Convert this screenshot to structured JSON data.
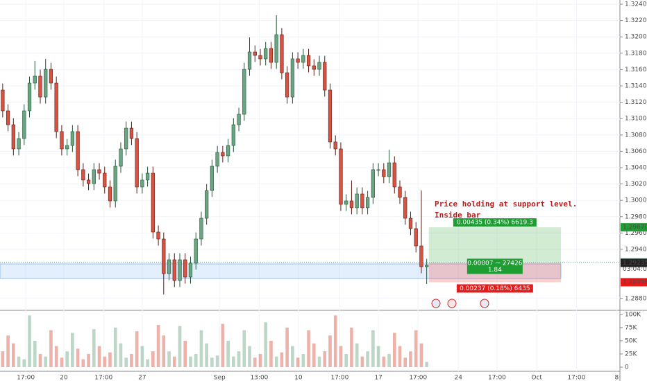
{
  "chart_data": {
    "type": "candlestick",
    "open": [
      1.31349,
      1.31095,
      1.30925,
      1.30629,
      1.30756,
      1.31095,
      1.31434,
      1.31519,
      1.31264,
      1.31603,
      1.31434,
      1.30841,
      1.30629,
      1.30671,
      1.30841,
      1.30375,
      1.30248,
      1.30205,
      1.30375,
      1.30332,
      1.30163,
      1.29993,
      1.30417,
      1.30629,
      1.30883,
      1.30756,
      1.30163,
      1.30248,
      1.30332,
      1.29612,
      1.29527,
      1.29103,
      1.29273,
      1.29019,
      1.29273,
      1.29061,
      1.29231,
      1.29527,
      1.29781,
      1.3012,
      1.30417,
      1.30586,
      1.30544,
      1.30671,
      1.30925,
      1.31053,
      1.31603,
      1.31815,
      1.31773,
      1.31731,
      1.31858,
      1.31688,
      1.32027,
      1.31561,
      1.31264,
      1.31731,
      1.31688,
      1.31773,
      1.31646,
      1.31603,
      1.31688,
      1.31349,
      1.30714,
      1.30629,
      1.29951,
      1.29993,
      1.29909,
      1.30078,
      1.29909,
      1.30036,
      1.30375,
      1.30375,
      1.3029,
      1.30459,
      1.30163,
      1.30036,
      1.29781,
      1.29654,
      1.29442,
      1.29188
    ],
    "high": [
      1.31429,
      1.31175,
      1.31005,
      1.30836,
      1.31175,
      1.31514,
      1.31706,
      1.31599,
      1.31731,
      1.31683,
      1.31514,
      1.30921,
      1.30751,
      1.30921,
      1.30921,
      1.30455,
      1.30328,
      1.30455,
      1.30455,
      1.30412,
      1.30243,
      1.30497,
      1.30709,
      1.30963,
      1.30963,
      1.30836,
      1.30328,
      1.30412,
      1.30412,
      1.29692,
      1.29607,
      1.29353,
      1.29353,
      1.29353,
      1.29353,
      1.29311,
      1.29607,
      1.29861,
      1.302,
      1.30497,
      1.30666,
      1.30666,
      1.30751,
      1.31005,
      1.31133,
      1.31683,
      1.31993,
      1.31895,
      1.31853,
      1.31938,
      1.31938,
      1.32264,
      1.32107,
      1.31641,
      1.31811,
      1.31811,
      1.31853,
      1.31853,
      1.31726,
      1.31768,
      1.31768,
      1.31429,
      1.30794,
      1.30709,
      1.30073,
      1.30243,
      1.30158,
      1.30158,
      1.30116,
      1.30455,
      1.30455,
      1.30455,
      1.3062,
      1.30539,
      1.30243,
      1.30116,
      1.29861,
      1.29734,
      1.3012,
      1.29285
    ],
    "low": [
      1.31015,
      1.30845,
      1.30549,
      1.30549,
      1.30676,
      1.31015,
      1.31354,
      1.31184,
      1.31184,
      1.31354,
      1.30761,
      1.30549,
      1.30549,
      1.30591,
      1.30295,
      1.30168,
      1.30125,
      1.30125,
      1.30252,
      1.30083,
      1.29913,
      1.29913,
      1.30337,
      1.30549,
      1.30676,
      1.30083,
      1.30083,
      1.30168,
      1.29532,
      1.29447,
      1.28849,
      1.29023,
      1.28939,
      1.28939,
      1.28981,
      1.28981,
      1.29151,
      1.29447,
      1.29701,
      1.3004,
      1.30337,
      1.30464,
      1.30464,
      1.30591,
      1.30845,
      1.30973,
      1.31523,
      1.31693,
      1.31651,
      1.31651,
      1.31608,
      1.31608,
      1.31481,
      1.31184,
      1.31184,
      1.31608,
      1.31608,
      1.31566,
      1.31523,
      1.31523,
      1.31269,
      1.30634,
      1.30549,
      1.29871,
      1.29871,
      1.29829,
      1.29829,
      1.29829,
      1.29829,
      1.29956,
      1.30295,
      1.3021,
      1.3021,
      1.30083,
      1.29956,
      1.29701,
      1.29574,
      1.29362,
      1.29108,
      1.28976
    ],
    "close": [
      1.31095,
      1.30925,
      1.30629,
      1.30756,
      1.31095,
      1.31434,
      1.31519,
      1.31264,
      1.31603,
      1.31434,
      1.30841,
      1.30629,
      1.30671,
      1.30841,
      1.30375,
      1.30248,
      1.30205,
      1.30375,
      1.30332,
      1.30163,
      1.29993,
      1.30417,
      1.30629,
      1.30883,
      1.30756,
      1.30163,
      1.30248,
      1.30332,
      1.29612,
      1.29527,
      1.29103,
      1.29273,
      1.29019,
      1.29273,
      1.29061,
      1.29231,
      1.29527,
      1.29781,
      1.3012,
      1.30417,
      1.30586,
      1.30544,
      1.30671,
      1.30925,
      1.31053,
      1.31603,
      1.31815,
      1.31773,
      1.31731,
      1.31858,
      1.31688,
      1.32027,
      1.31561,
      1.31264,
      1.31731,
      1.31688,
      1.31773,
      1.31646,
      1.31603,
      1.31688,
      1.31349,
      1.30714,
      1.30629,
      1.29951,
      1.29993,
      1.29909,
      1.30078,
      1.29909,
      1.30036,
      1.30375,
      1.30375,
      1.3029,
      1.30459,
      1.30163,
      1.30036,
      1.29781,
      1.29654,
      1.29442,
      1.29188,
      1.29205
    ],
    "volume": [
      30000,
      60000,
      45000,
      20000,
      15000,
      98000,
      50000,
      25000,
      20000,
      70000,
      40000,
      18000,
      30000,
      65000,
      35000,
      15000,
      25000,
      72000,
      40000,
      20000,
      28000,
      75000,
      45000,
      18000,
      25000,
      68000,
      40000,
      15000,
      30000,
      80000,
      60000,
      30000,
      20000,
      78000,
      50000,
      20000,
      25000,
      70000,
      45000,
      18000,
      22000,
      82000,
      50000,
      20000,
      30000,
      70000,
      40000,
      18000,
      25000,
      85000,
      50000,
      20000,
      28000,
      75000,
      40000,
      18000,
      25000,
      70000,
      45000,
      20000,
      30000,
      60000,
      98000,
      40000,
      25000,
      75000,
      45000,
      20000,
      30000,
      70000,
      40000,
      20000,
      25000,
      65000,
      40000,
      18000,
      30000,
      70000,
      45000,
      10000
    ],
    "up_color": "#6ba583",
    "down_color": "#d75442",
    "grid": true,
    "xlim": [
      -0.5,
      115
    ],
    "xticks": [
      {
        "value": 4.3,
        "label": "17:00"
      },
      {
        "value": 11.4,
        "label": "20"
      },
      {
        "value": 18.8,
        "label": "17:00"
      },
      {
        "value": 26.0,
        "label": "27"
      },
      {
        "value": 40.4,
        "label": "Sep"
      },
      {
        "value": 47.8,
        "label": "13:00"
      },
      {
        "value": 55.1,
        "label": "10"
      },
      {
        "value": 62.8,
        "label": "17:00"
      },
      {
        "value": 70.0,
        "label": "17"
      },
      {
        "value": 77.4,
        "label": "17:00"
      },
      {
        "value": 84.9,
        "label": "24"
      },
      {
        "value": 92.1,
        "label": "17:00"
      },
      {
        "value": 99.5,
        "label": "Oct"
      },
      {
        "value": 106.9,
        "label": "17:00"
      },
      {
        "value": 114.4,
        "label": "8"
      }
    ],
    "ylim": [
      1.28654,
      1.32451
    ],
    "yticks": [
      {
        "value": 1.324,
        "label": "1.32400"
      },
      {
        "value": 1.322,
        "label": "1.32200"
      },
      {
        "value": 1.32,
        "label": "1.32000"
      },
      {
        "value": 1.318,
        "label": "1.31800"
      },
      {
        "value": 1.316,
        "label": "1.31600"
      },
      {
        "value": 1.314,
        "label": "1.31400"
      },
      {
        "value": 1.312,
        "label": "1.31200"
      },
      {
        "value": 1.31,
        "label": "1.31000"
      },
      {
        "value": 1.308,
        "label": "1.30800"
      },
      {
        "value": 1.306,
        "label": "1.30600"
      },
      {
        "value": 1.304,
        "label": "1.30400"
      },
      {
        "value": 1.302,
        "label": "1.30200"
      },
      {
        "value": 1.3,
        "label": "1.30000"
      },
      {
        "value": 1.298,
        "label": "1.29800"
      },
      {
        "value": 1.296,
        "label": "1.29600"
      },
      {
        "value": 1.294,
        "label": "1.29400"
      },
      {
        "value": 1.288,
        "label": "1.28800"
      }
    ],
    "volume_ylim": [
      0,
      105000
    ],
    "volume_yticks": [
      {
        "value": 100000,
        "label": "100K"
      },
      {
        "value": 75000,
        "label": "75K"
      },
      {
        "value": 50000,
        "label": "50K"
      },
      {
        "value": 25000,
        "label": "25K"
      },
      0
    ],
    "support_zone": [
      1.29044,
      1.29222
    ],
    "last_price": 1.29242,
    "countdown": "03:04:01",
    "annotations": [
      "Price holding at support level.",
      "Inside bar"
    ],
    "position": {
      "x_range": [
        79.4,
        104
      ],
      "entry": 1.29235,
      "target": {
        "value": 1.2967,
        "label": "1.29670"
      },
      "stop": 1.28998,
      "target_label": "0.00435 (0.34%) 6619.3",
      "risk_reward_label": "0.00007 ~ 27426",
      "ratio_label": "1.84",
      "stop_label": "0.00237 (0.18%) 6435"
    }
  }
}
